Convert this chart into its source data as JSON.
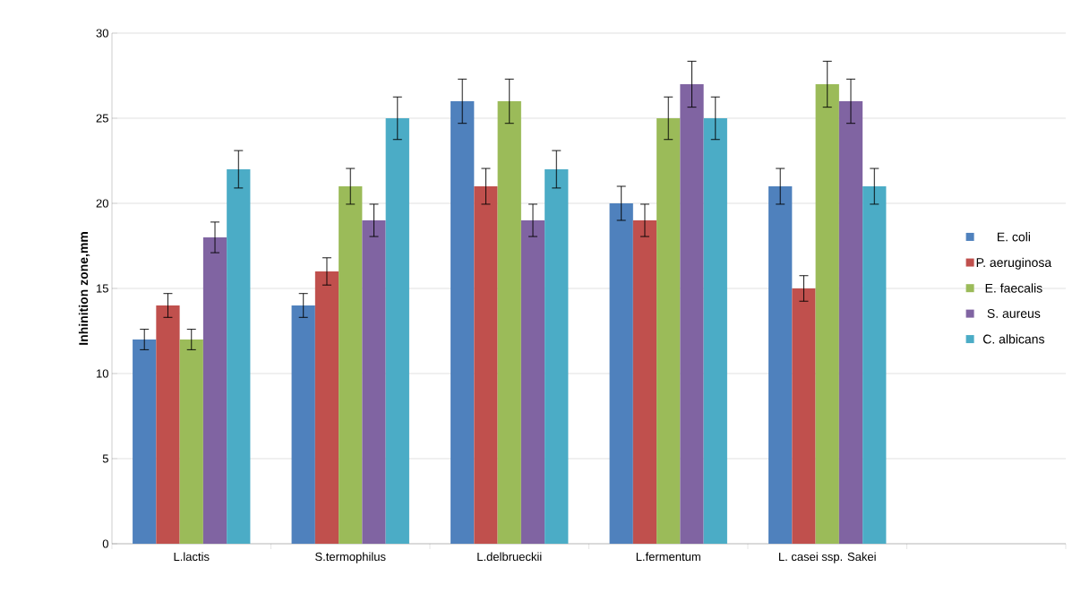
{
  "chart_data": {
    "type": "bar",
    "ylabel": "Inhinition zone,mm",
    "categories": [
      "L.lactis",
      "S.termophilus",
      "L.delbrueckii",
      "L.fermentum",
      "L. casei ssp. Sakei",
      null
    ],
    "series": [
      {
        "name": "E. coli",
        "color": "#4f81bd",
        "values": [
          12,
          14,
          26,
          20,
          21,
          null
        ],
        "errors": [
          0.6,
          0.7,
          1.3,
          1.0,
          1.05,
          null
        ]
      },
      {
        "name": "P. aeruginosa",
        "color": "#c0504d",
        "values": [
          14,
          16,
          21,
          19,
          15,
          null
        ],
        "errors": [
          0.7,
          0.8,
          1.05,
          0.95,
          0.75,
          null
        ]
      },
      {
        "name": "E. faecalis",
        "color": "#9bbb59",
        "values": [
          12,
          21,
          26,
          25,
          27,
          null
        ],
        "errors": [
          0.6,
          1.05,
          1.3,
          1.25,
          1.35,
          null
        ]
      },
      {
        "name": "S. aureus",
        "color": "#8064a2",
        "values": [
          18,
          19,
          19,
          27,
          26,
          null
        ],
        "errors": [
          0.9,
          0.95,
          0.95,
          1.35,
          1.3,
          null
        ]
      },
      {
        "name": "C. albicans",
        "color": "#4bacc6",
        "values": [
          22,
          25,
          22,
          25,
          21,
          null
        ],
        "errors": [
          1.1,
          1.25,
          1.1,
          1.25,
          1.05,
          null
        ]
      }
    ],
    "ylim": [
      0,
      30
    ],
    "yticks": [
      0,
      5,
      10,
      15,
      20,
      25,
      30
    ],
    "grid": "y",
    "legend": "right"
  }
}
